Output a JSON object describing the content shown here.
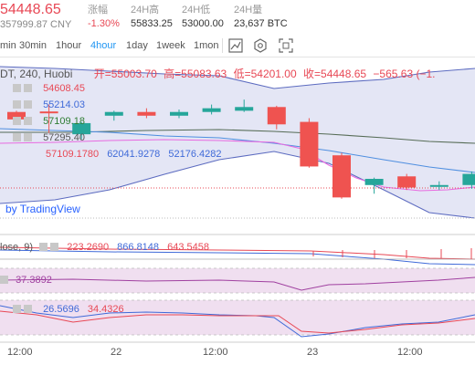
{
  "header": {
    "price": "54448.65",
    "cny": "357999.87 CNY",
    "change_label": "涨幅",
    "change_value": "-1.30%",
    "high_label": "24H高",
    "high_value": "55833.25",
    "low_label": "24H低",
    "low_value": "53000.00",
    "vol_label": "24H量",
    "vol_value": "23,637 BTC"
  },
  "toolbar": {
    "intervals": [
      "min",
      "30min",
      "1hour",
      "4hour",
      "1day",
      "1week",
      "1mon"
    ],
    "active_interval": "4hour",
    "icons": [
      "candle-style-icon",
      "settings-hex-icon",
      "fullscreen-icon"
    ]
  },
  "legend": {
    "symbol": "DT, 240, Huobi",
    "open_label": "开=",
    "open": "55003.70",
    "high_label": "高=",
    "high": "55083.63",
    "low_label": "低=",
    "low": "54201.00",
    "close_label": "收=",
    "close": "54448.65",
    "change": "−565.63 (−1."
  },
  "indicators": {
    "ma1": "54608.45",
    "ma2": "55214.03",
    "ma3": "57109.18",
    "ma4": "57295.40",
    "bb_prefix": "57109.1780",
    "bb_mid": "62041.9278",
    "bb_low": "52176.4282",
    "watermark": "by TradingView",
    "macd_label": "lose, 9)",
    "macd_1": "223.2690",
    "macd_2": "866.8148",
    "macd_3": "643.5458",
    "rsi": "37.3892",
    "kdj_1": "26.5696",
    "kdj_2": "34.4326"
  },
  "x_axis": [
    "12:00",
    "22",
    "12:00",
    "23",
    "12:00"
  ],
  "colors": {
    "up": "#26a69a",
    "down": "#ef5350",
    "ma_blue": "#3f6ad8",
    "ma_green": "#2e7d32",
    "ma_pink": "#e040fb",
    "band_fill": "#e1e3f4",
    "osc_fill": "#f0dff0"
  },
  "chart_data": {
    "type": "candlestick",
    "candles": [
      {
        "o": 57300,
        "h": 57350,
        "l": 56950,
        "c": 57000
      },
      {
        "o": 57320,
        "h": 57600,
        "l": 56450,
        "c": 57300
      },
      {
        "o": 56400,
        "h": 56900,
        "l": 56200,
        "c": 56850
      },
      {
        "o": 57150,
        "h": 57350,
        "l": 56950,
        "c": 57300
      },
      {
        "o": 57300,
        "h": 57450,
        "l": 57050,
        "c": 57150
      },
      {
        "o": 57150,
        "h": 57400,
        "l": 57050,
        "c": 57300
      },
      {
        "o": 57300,
        "h": 57600,
        "l": 57200,
        "c": 57450
      },
      {
        "o": 57350,
        "h": 57800,
        "l": 57300,
        "c": 57500
      },
      {
        "o": 57500,
        "h": 57550,
        "l": 56600,
        "c": 56800
      },
      {
        "o": 56900,
        "h": 57050,
        "l": 55050,
        "c": 55100
      },
      {
        "o": 55550,
        "h": 55650,
        "l": 53800,
        "c": 53850
      },
      {
        "o": 54350,
        "h": 54650,
        "l": 54000,
        "c": 54600
      },
      {
        "o": 54700,
        "h": 54800,
        "l": 54150,
        "c": 54250
      },
      {
        "o": 54300,
        "h": 54500,
        "l": 54150,
        "c": 54350
      },
      {
        "o": 54350,
        "h": 54900,
        "l": 54200,
        "c": 54800
      }
    ],
    "ylim": [
      52500,
      59500
    ]
  }
}
